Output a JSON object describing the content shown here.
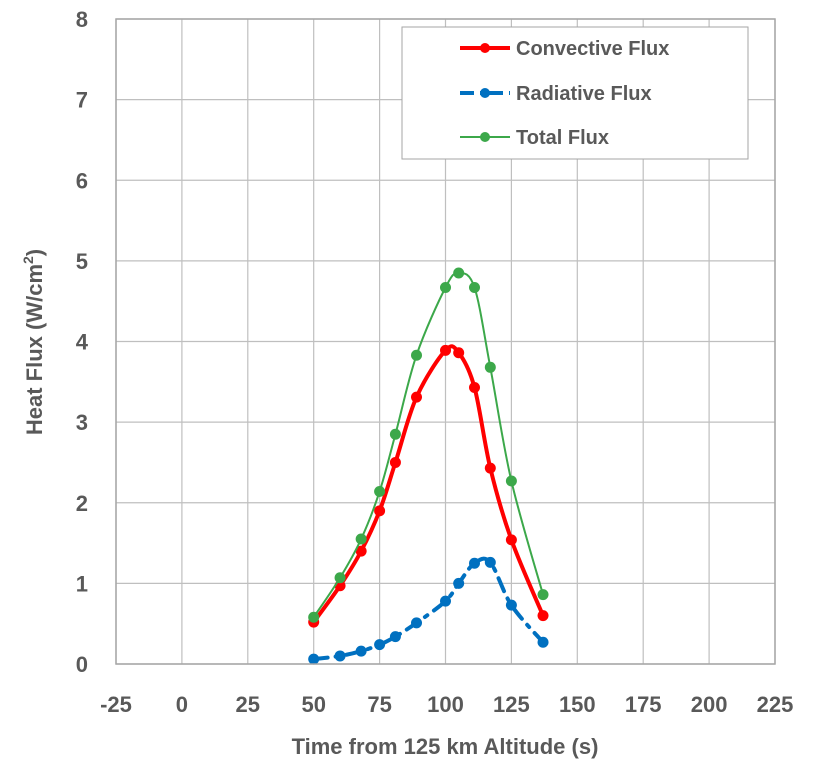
{
  "chart_data": {
    "type": "line",
    "xlabel": "Time from 125 km Altitude (s)",
    "ylabel_main": "Heat Flux (W/cm",
    "ylabel_sup": "2",
    "ylabel_close": ")",
    "xlim": [
      -25,
      225
    ],
    "ylim": [
      0,
      8
    ],
    "xticks": [
      "-25",
      "0",
      "25",
      "50",
      "75",
      "100",
      "125",
      "150",
      "175",
      "200",
      "225"
    ],
    "yticks": [
      "0",
      "1",
      "2",
      "3",
      "4",
      "5",
      "6",
      "7",
      "8"
    ],
    "grid": true,
    "legend_position": "top-right",
    "series": [
      {
        "name": "Convective Flux",
        "color": "#ff0000",
        "line_style": "solid",
        "x": [
          50,
          60,
          68,
          75,
          81,
          89,
          100,
          105,
          111,
          117,
          125,
          137
        ],
        "y": [
          0.52,
          0.97,
          1.4,
          1.9,
          2.5,
          3.31,
          3.89,
          3.86,
          3.43,
          2.43,
          1.54,
          0.6
        ]
      },
      {
        "name": "Radiative Flux",
        "color": "#0070c0",
        "line_style": "dash-dot",
        "x": [
          50,
          60,
          68,
          75,
          81,
          89,
          100,
          105,
          111,
          117,
          125,
          137
        ],
        "y": [
          0.06,
          0.1,
          0.16,
          0.24,
          0.34,
          0.51,
          0.78,
          1.0,
          1.25,
          1.26,
          0.73,
          0.27
        ]
      },
      {
        "name": "Total Flux",
        "color": "#3ca84a",
        "line_style": "solid",
        "x": [
          50,
          60,
          68,
          75,
          81,
          89,
          100,
          105,
          111,
          117,
          125,
          137
        ],
        "y": [
          0.58,
          1.07,
          1.55,
          2.14,
          2.85,
          3.83,
          4.67,
          4.85,
          4.67,
          3.68,
          2.27,
          0.86
        ]
      }
    ]
  }
}
